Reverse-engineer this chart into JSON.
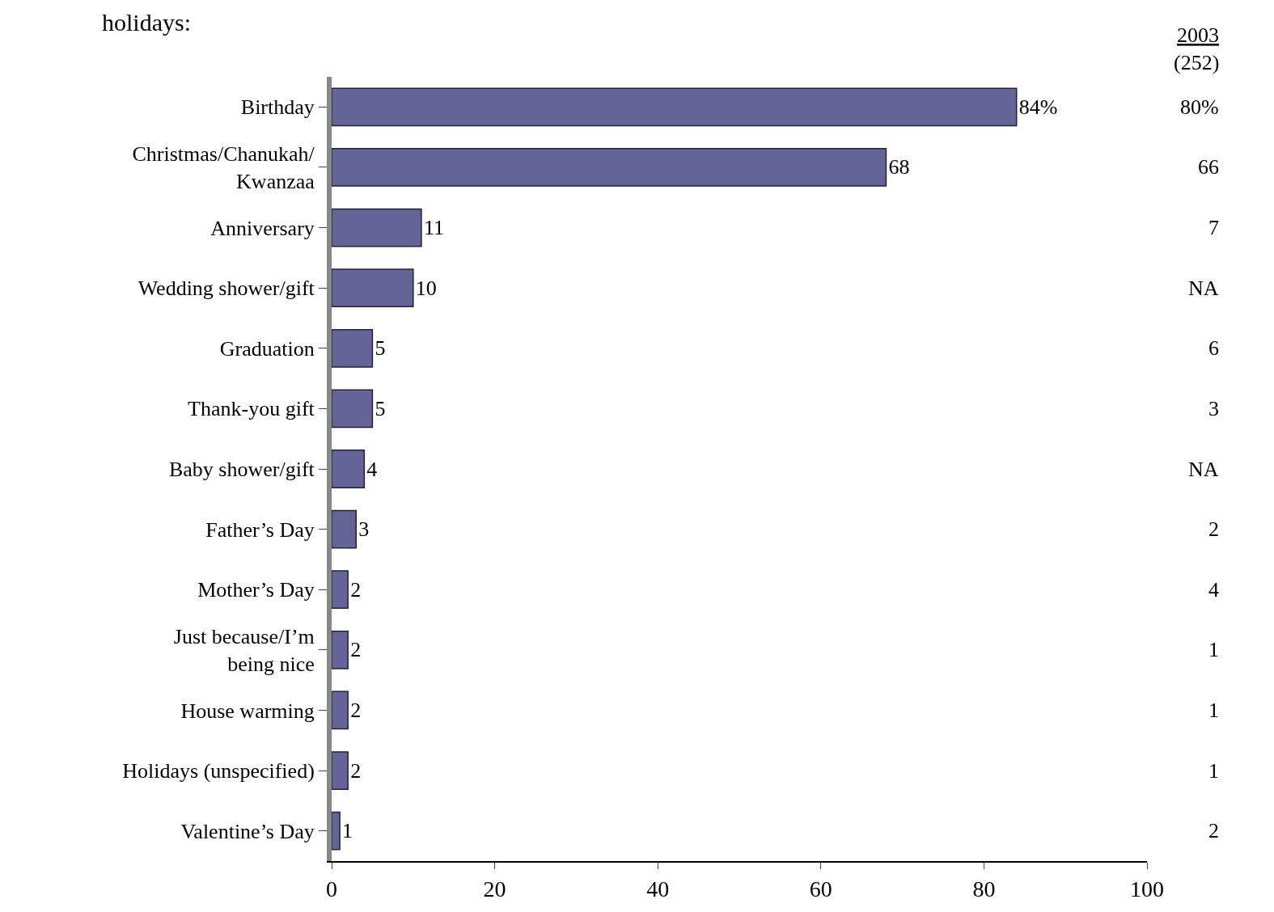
{
  "chart_data": {
    "type": "bar",
    "orientation": "horizontal",
    "title": "holidays:",
    "categories": [
      "Birthday",
      "Christmas/Chanukah/\nKwanzaa",
      "Anniversary",
      "Wedding shower/gift",
      "Graduation",
      "Thank-you gift",
      "Baby shower/gift",
      "Father’s Day",
      "Mother’s Day",
      "Just because/I’m\nbeing nice",
      "House warming",
      "Holidays (unspecified)",
      "Valentine’s Day"
    ],
    "values": [
      84,
      68,
      11,
      10,
      5,
      5,
      4,
      3,
      2,
      2,
      2,
      2,
      1
    ],
    "value_labels": [
      "84%",
      "68",
      "11",
      "10",
      "5",
      "5",
      "4",
      "3",
      "2",
      "2",
      "2",
      "2",
      "1"
    ],
    "color": "#646496",
    "xlim": [
      0,
      100
    ],
    "xticks": [
      0,
      20,
      40,
      60,
      80,
      100
    ],
    "annotations": [
      "2003",
      "(252)",
      "80%",
      "66",
      "7",
      "NA",
      "6",
      "3",
      "NA",
      "2",
      "4",
      "1",
      "1",
      "1",
      "2"
    ]
  }
}
